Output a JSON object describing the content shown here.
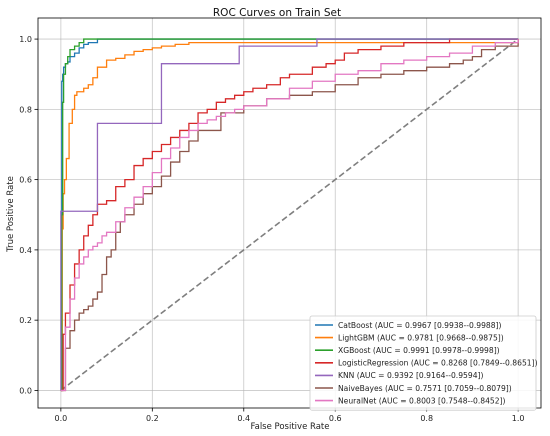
{
  "chart_data": {
    "type": "line",
    "title": "ROC Curves on Train Set",
    "xlabel": "False Positive Rate",
    "ylabel": "True Positive Rate",
    "xlim": [
      -0.05,
      1.05
    ],
    "ylim": [
      -0.05,
      1.06
    ],
    "xticks": [
      "0.0",
      "0.2",
      "0.4",
      "0.6",
      "0.8",
      "1.0"
    ],
    "yticks": [
      "0.0",
      "0.2",
      "0.4",
      "0.6",
      "0.8",
      "1.0"
    ],
    "grid": true,
    "legend_position": "lower-right",
    "reference_line": {
      "x": [
        0,
        1
      ],
      "y": [
        0,
        1
      ],
      "color": "#7f7f7f",
      "style": "dashed"
    },
    "series": [
      {
        "name": "CatBoost (AUC = 0.9967 [0.9938--0.9988])",
        "color": "#1f77b4",
        "x": [
          0,
          0.002,
          0.004,
          0.006,
          0.01,
          0.015,
          0.02,
          0.03,
          0.04,
          0.05,
          0.06,
          0.08,
          1.0
        ],
        "y": [
          0,
          0.88,
          0.9,
          0.92,
          0.93,
          0.935,
          0.95,
          0.96,
          0.975,
          0.985,
          0.99,
          1.0,
          1.0
        ]
      },
      {
        "name": "LightGBM (AUC = 0.9781 [0.9668--0.9875])",
        "color": "#ff7f0e",
        "x": [
          0,
          0.003,
          0.005,
          0.008,
          0.012,
          0.018,
          0.025,
          0.03,
          0.035,
          0.05,
          0.06,
          0.07,
          0.08,
          0.1,
          0.12,
          0.14,
          0.16,
          0.18,
          0.2,
          0.22,
          0.25,
          0.28,
          1.0
        ],
        "y": [
          0,
          0.46,
          0.56,
          0.6,
          0.66,
          0.76,
          0.8,
          0.84,
          0.85,
          0.86,
          0.87,
          0.89,
          0.92,
          0.94,
          0.945,
          0.955,
          0.965,
          0.97,
          0.975,
          0.98,
          0.985,
          0.99,
          1.0
        ]
      },
      {
        "name": "XGBoost (AUC = 0.9991 [0.9978--0.9998])",
        "color": "#2ca02c",
        "x": [
          0,
          0.002,
          0.004,
          0.006,
          0.01,
          0.015,
          0.02,
          0.03,
          0.04,
          0.05,
          1.0
        ],
        "y": [
          0,
          0.5,
          0.82,
          0.9,
          0.93,
          0.95,
          0.97,
          0.98,
          0.99,
          1.0,
          1.0
        ]
      },
      {
        "name": "LogisticRegression (AUC = 0.8268 [0.7849--0.8651])",
        "color": "#d62728",
        "x": [
          0,
          0.005,
          0.01,
          0.02,
          0.03,
          0.04,
          0.05,
          0.06,
          0.07,
          0.08,
          0.1,
          0.12,
          0.14,
          0.16,
          0.18,
          0.2,
          0.22,
          0.24,
          0.26,
          0.28,
          0.3,
          0.32,
          0.34,
          0.36,
          0.38,
          0.4,
          0.42,
          0.45,
          0.48,
          0.5,
          0.52,
          0.55,
          0.58,
          0.6,
          0.62,
          0.65,
          0.68,
          0.7,
          0.75,
          0.8,
          0.85,
          1.0
        ],
        "y": [
          0,
          0.16,
          0.22,
          0.3,
          0.36,
          0.4,
          0.44,
          0.47,
          0.5,
          0.53,
          0.54,
          0.58,
          0.6,
          0.64,
          0.66,
          0.68,
          0.7,
          0.72,
          0.74,
          0.76,
          0.79,
          0.8,
          0.82,
          0.83,
          0.84,
          0.85,
          0.86,
          0.87,
          0.89,
          0.9,
          0.9,
          0.92,
          0.93,
          0.94,
          0.96,
          0.97,
          0.97,
          0.98,
          0.99,
          0.99,
          1.0,
          1.0
        ]
      },
      {
        "name": "KNN (AUC = 0.9392 [0.9164--0.9594])",
        "color": "#9467bd",
        "x": [
          0,
          0,
          0.08,
          0.22,
          0.39,
          0.56,
          1.0
        ],
        "y": [
          0,
          0.51,
          0.76,
          0.93,
          0.98,
          1.0,
          1.0
        ]
      },
      {
        "name": "NaiveBayes (AUC = 0.7571 [0.7059--0.8079])",
        "color": "#8c564b",
        "x": [
          0,
          0.01,
          0.02,
          0.03,
          0.04,
          0.05,
          0.06,
          0.07,
          0.08,
          0.09,
          0.1,
          0.11,
          0.12,
          0.13,
          0.14,
          0.16,
          0.18,
          0.2,
          0.22,
          0.24,
          0.26,
          0.28,
          0.3,
          0.35,
          0.4,
          0.45,
          0.5,
          0.55,
          0.6,
          0.65,
          0.7,
          0.75,
          0.8,
          0.85,
          0.88,
          0.9,
          0.92,
          0.95,
          1.0
        ],
        "y": [
          0,
          0.12,
          0.17,
          0.2,
          0.22,
          0.23,
          0.24,
          0.26,
          0.28,
          0.33,
          0.38,
          0.4,
          0.45,
          0.48,
          0.5,
          0.53,
          0.56,
          0.58,
          0.61,
          0.65,
          0.68,
          0.71,
          0.74,
          0.79,
          0.81,
          0.83,
          0.84,
          0.85,
          0.87,
          0.89,
          0.9,
          0.91,
          0.92,
          0.93,
          0.94,
          0.95,
          0.97,
          0.98,
          1.0
        ]
      },
      {
        "name": "NeuralNet (AUC = 0.8003 [0.7548--0.8452])",
        "color": "#e377c2",
        "x": [
          0,
          0.01,
          0.02,
          0.03,
          0.04,
          0.05,
          0.06,
          0.07,
          0.08,
          0.09,
          0.1,
          0.12,
          0.14,
          0.16,
          0.18,
          0.2,
          0.22,
          0.24,
          0.26,
          0.28,
          0.3,
          0.32,
          0.34,
          0.36,
          0.38,
          0.4,
          0.45,
          0.5,
          0.55,
          0.6,
          0.65,
          0.7,
          0.75,
          0.8,
          0.85,
          0.9,
          0.95,
          1.0
        ],
        "y": [
          0,
          0.18,
          0.26,
          0.32,
          0.36,
          0.38,
          0.4,
          0.41,
          0.42,
          0.44,
          0.45,
          0.48,
          0.52,
          0.55,
          0.58,
          0.62,
          0.66,
          0.69,
          0.72,
          0.74,
          0.76,
          0.77,
          0.78,
          0.79,
          0.8,
          0.81,
          0.83,
          0.86,
          0.88,
          0.9,
          0.91,
          0.93,
          0.94,
          0.95,
          0.96,
          0.98,
          0.99,
          1.0
        ]
      }
    ]
  }
}
